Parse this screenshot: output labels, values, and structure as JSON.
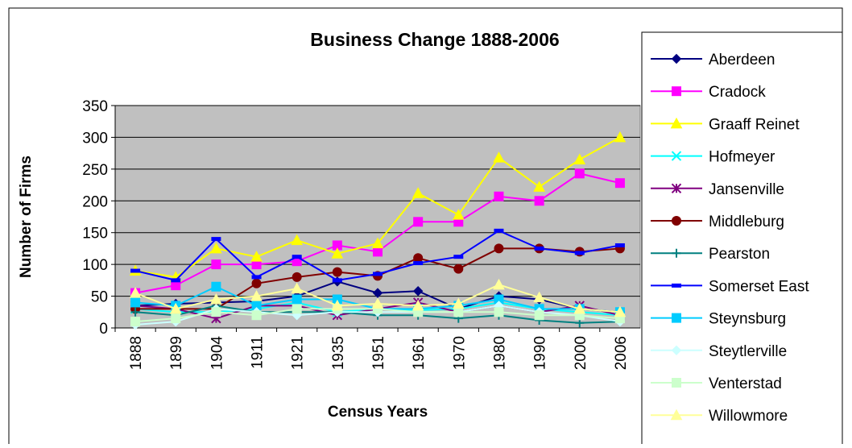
{
  "chart_data": {
    "type": "line",
    "title": "Business Change 1888-2006",
    "x_label": "Census Years",
    "y_label": "Number of Firms",
    "categories": [
      "1888",
      "1899",
      "1904",
      "1911",
      "1921",
      "1935",
      "1951",
      "1961",
      "1970",
      "1980",
      "1990",
      "2000",
      "2006"
    ],
    "ylim": [
      0,
      350
    ],
    "yticks": [
      0,
      50,
      100,
      150,
      200,
      250,
      300,
      350
    ],
    "grid": true,
    "legend": "right",
    "plot_background": "#c0c0c0",
    "series": [
      {
        "name": "Aberdeen",
        "color": "#000080",
        "marker": "diamond",
        "values": [
          35,
          38,
          40,
          42,
          50,
          73,
          55,
          58,
          30,
          50,
          45,
          30,
          25
        ]
      },
      {
        "name": "Cradock",
        "color": "#ff00ff",
        "marker": "square",
        "values": [
          55,
          67,
          100,
          100,
          105,
          130,
          120,
          167,
          167,
          207,
          200,
          243,
          228
        ]
      },
      {
        "name": "Graaff Reinet",
        "color": "#ffff00",
        "marker": "triangle",
        "values": [
          90,
          80,
          125,
          112,
          138,
          117,
          133,
          212,
          178,
          268,
          222,
          265,
          300
        ]
      },
      {
        "name": "Hofmeyer",
        "color": "#00ffff",
        "marker": "x",
        "values": [
          30,
          25,
          25,
          30,
          40,
          25,
          30,
          28,
          30,
          40,
          30,
          25,
          20
        ]
      },
      {
        "name": "Jansenville",
        "color": "#800080",
        "marker": "star",
        "values": [
          35,
          30,
          15,
          35,
          35,
          20,
          30,
          40,
          25,
          35,
          25,
          35,
          20
        ]
      },
      {
        "name": "Middleburg",
        "color": "#800000",
        "marker": "circle",
        "values": [
          30,
          30,
          30,
          70,
          80,
          88,
          82,
          110,
          93,
          125,
          125,
          120,
          125
        ]
      },
      {
        "name": "Pearston",
        "color": "#008080",
        "marker": "plus",
        "values": [
          25,
          20,
          35,
          25,
          25,
          25,
          20,
          20,
          15,
          20,
          12,
          8,
          10
        ]
      },
      {
        "name": "Somerset East",
        "color": "#0000ff",
        "marker": "bar",
        "values": [
          90,
          75,
          140,
          80,
          112,
          75,
          85,
          102,
          112,
          153,
          125,
          118,
          130
        ]
      },
      {
        "name": "Steynsburg",
        "color": "#00ccff",
        "marker": "square",
        "values": [
          40,
          35,
          65,
          35,
          45,
          45,
          30,
          30,
          35,
          45,
          30,
          30,
          25
        ]
      },
      {
        "name": "Steytlerville",
        "color": "#ccffff",
        "marker": "diamond",
        "values": [
          5,
          10,
          30,
          25,
          20,
          25,
          25,
          25,
          25,
          35,
          25,
          20,
          10
        ]
      },
      {
        "name": "Venterstad",
        "color": "#ccffcc",
        "marker": "square",
        "values": [
          10,
          15,
          25,
          20,
          30,
          30,
          30,
          25,
          25,
          25,
          20,
          20,
          15
        ]
      },
      {
        "name": "Willowmore",
        "color": "#ffff99",
        "marker": "triangle",
        "values": [
          55,
          30,
          45,
          50,
          62,
          35,
          38,
          35,
          38,
          68,
          48,
          30,
          25
        ]
      }
    ]
  }
}
